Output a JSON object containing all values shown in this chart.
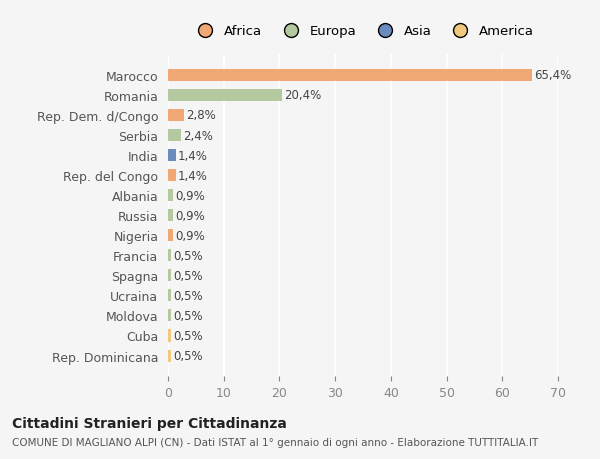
{
  "categories": [
    "Rep. Dominicana",
    "Cuba",
    "Moldova",
    "Ucraina",
    "Spagna",
    "Francia",
    "Nigeria",
    "Russia",
    "Albania",
    "Rep. del Congo",
    "India",
    "Serbia",
    "Rep. Dem. d/Congo",
    "Romania",
    "Marocco"
  ],
  "values": [
    0.5,
    0.5,
    0.5,
    0.5,
    0.5,
    0.5,
    0.9,
    0.9,
    0.9,
    1.4,
    1.4,
    2.4,
    2.8,
    20.4,
    65.4
  ],
  "labels": [
    "0,5%",
    "0,5%",
    "0,5%",
    "0,5%",
    "0,5%",
    "0,5%",
    "0,9%",
    "0,9%",
    "0,9%",
    "1,4%",
    "1,4%",
    "2,4%",
    "2,8%",
    "20,4%",
    "65,4%"
  ],
  "colors": [
    "#f0c97e",
    "#f0c97e",
    "#b5c9a0",
    "#b5c9a0",
    "#b5c9a0",
    "#b5c9a0",
    "#f0a875",
    "#b5c9a0",
    "#b5c9a0",
    "#f0a875",
    "#6b8bbf",
    "#b5c9a0",
    "#f0a875",
    "#b5c9a0",
    "#f0a875"
  ],
  "continent_colors": {
    "Africa": "#f0a875",
    "Europa": "#b5c9a0",
    "Asia": "#6b8bbf",
    "America": "#f0c97e"
  },
  "xlim": [
    0,
    70
  ],
  "xticks": [
    0,
    10,
    20,
    30,
    40,
    50,
    60,
    70
  ],
  "background_color": "#f5f5f5",
  "title": "Cittadini Stranieri per Cittadinanza",
  "subtitle": "COMUNE DI MAGLIANO ALPI (CN) - Dati ISTAT al 1° gennaio di ogni anno - Elaborazione TUTTITALIA.IT",
  "bar_height": 0.6
}
